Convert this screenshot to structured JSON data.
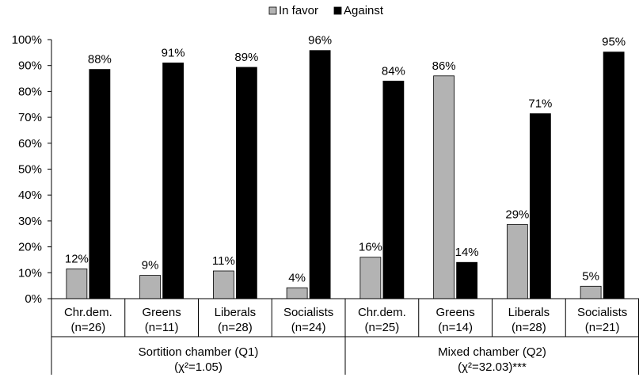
{
  "chart_data": {
    "type": "bar",
    "legend": {
      "position": "top",
      "entries": [
        "In favor",
        "Against"
      ]
    },
    "y_axis": {
      "ylim": [
        0,
        100
      ],
      "ticks": [
        "0%",
        "10%",
        "20%",
        "30%",
        "40%",
        "50%",
        "60%",
        "70%",
        "80%",
        "90%",
        "100%"
      ],
      "grid": false
    },
    "categories": [
      {
        "line1": "Chr.dem.",
        "line2": "(n=26)"
      },
      {
        "line1": "Greens",
        "line2": "(n=11)"
      },
      {
        "line1": "Liberals",
        "line2": "(n=28)"
      },
      {
        "line1": "Socialists",
        "line2": "(n=24)"
      },
      {
        "line1": "Chr.dem.",
        "line2": "(n=25)"
      },
      {
        "line1": "Greens",
        "line2": "(n=14)"
      },
      {
        "line1": "Liberals",
        "line2": "(n=28)"
      },
      {
        "line1": "Socialists",
        "line2": "(n=21)"
      }
    ],
    "groups": [
      {
        "line1": "Sortition chamber (Q1)",
        "line2": "(χ²=1.05)",
        "categories": [
          0,
          1,
          2,
          3
        ]
      },
      {
        "line1": "Mixed chamber (Q2)",
        "line2": "(χ²=32.03)***",
        "categories": [
          4,
          5,
          6,
          7
        ]
      }
    ],
    "series": [
      {
        "name": "In favor",
        "color": "#b3b3b3",
        "values": [
          11.5,
          9,
          10.7,
          4.2,
          16,
          86,
          28.6,
          4.8
        ],
        "labels": [
          "12%",
          "9%",
          "11%",
          "4%",
          "16%",
          "86%",
          "29%",
          "5%"
        ]
      },
      {
        "name": "Against",
        "color": "#000000",
        "values": [
          88.5,
          91,
          89.3,
          95.8,
          84,
          14,
          71.4,
          95.2
        ],
        "labels": [
          "88%",
          "91%",
          "89%",
          "96%",
          "84%",
          "14%",
          "71%",
          "95%"
        ]
      }
    ]
  }
}
